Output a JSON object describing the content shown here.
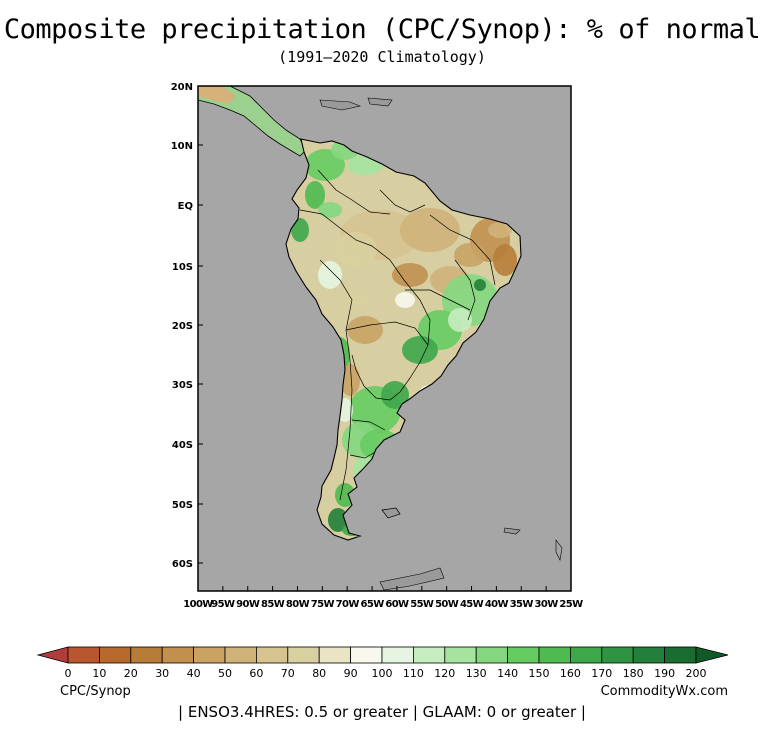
{
  "header": {
    "title": "Composite precipitation (CPC/Synop): % of normal",
    "subtitle": "(1991–2020 Climatology)"
  },
  "map": {
    "region": "South America",
    "ocean_color": "#a6a6a6",
    "land_base_color": "#d7cfa2",
    "lat_labels": [
      "20N",
      "10N",
      "EQ",
      "10S",
      "20S",
      "30S",
      "40S",
      "50S",
      "60S"
    ],
    "lon_labels": [
      "100W",
      "95W",
      "90W",
      "85W",
      "80W",
      "75W",
      "70W",
      "65W",
      "60W",
      "55W",
      "50W",
      "45W",
      "40W",
      "35W",
      "30W",
      "25W"
    ]
  },
  "colorbar": {
    "ticks": [
      "0",
      "10",
      "20",
      "30",
      "40",
      "50",
      "60",
      "70",
      "80",
      "90",
      "100",
      "110",
      "120",
      "130",
      "140",
      "150",
      "160",
      "170",
      "180",
      "190",
      "200"
    ],
    "colors": [
      "#b13d3b",
      "#b8562f",
      "#b86a2e",
      "#b87c3a",
      "#c1904f",
      "#c9a264",
      "#cfb27a",
      "#d6c390",
      "#d9cfa0",
      "#e8e4c4",
      "#f8f8ec",
      "#e6f5e2",
      "#c6edc0",
      "#a5e39f",
      "#84d77f",
      "#66cc62",
      "#4fba50",
      "#3ea74a",
      "#2f9341",
      "#237f39",
      "#1a6c31",
      "#0f5a26"
    ]
  },
  "footer": {
    "left_label": "CPC/Synop",
    "right_label": "CommodityWx.com",
    "criteria": "| ENSO3.4HRES: 0.5 or greater | GLAAM: 0 or greater |"
  }
}
